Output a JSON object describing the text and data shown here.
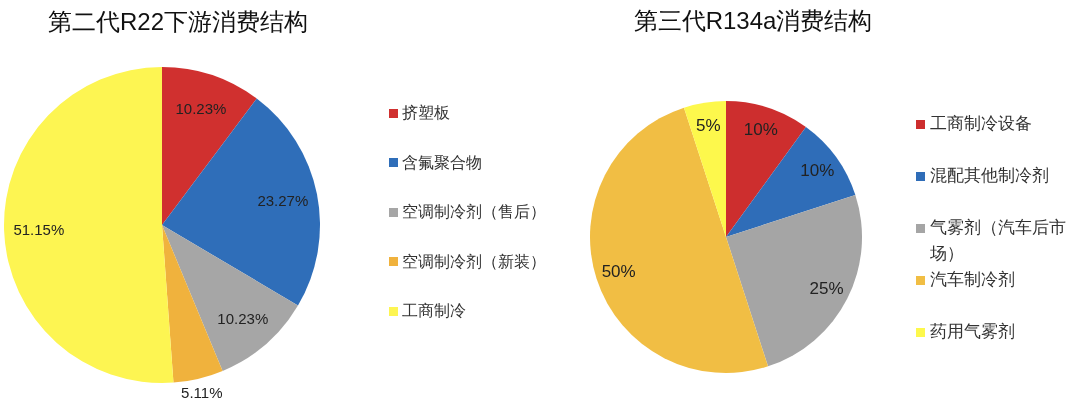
{
  "chart_data": [
    {
      "type": "pie",
      "title": "第二代R22下游消费结构",
      "categories": [
        "挤塑板",
        "含氟聚合物",
        "空调制冷剂（售后）",
        "空调制冷剂（新装）",
        "工商制冷"
      ],
      "values": [
        10.23,
        23.27,
        10.23,
        5.11,
        51.15
      ],
      "colors": [
        "#d0302f",
        "#2f6eb9",
        "#a6a6a6",
        "#f0b23d",
        "#fdf552"
      ],
      "value_labels": [
        "10.23%",
        "23.27%",
        "10.23%",
        "5.11%",
        "51.15%"
      ],
      "legend": "right"
    },
    {
      "type": "pie",
      "title": "第三代R134a消费结构",
      "categories": [
        "工商制冷设备",
        "混配其他制冷剂",
        "气雾剂（汽车后市场）",
        "汽车制冷剂",
        "药用气雾剂"
      ],
      "values": [
        10,
        10,
        25,
        50,
        5
      ],
      "colors": [
        "#cd2e2e",
        "#2f6db8",
        "#a5a5a5",
        "#f1be44",
        "#fdf84c"
      ],
      "value_labels": [
        "10%",
        "10%",
        "25%",
        "50%",
        "5%"
      ],
      "legend": "right"
    }
  ]
}
